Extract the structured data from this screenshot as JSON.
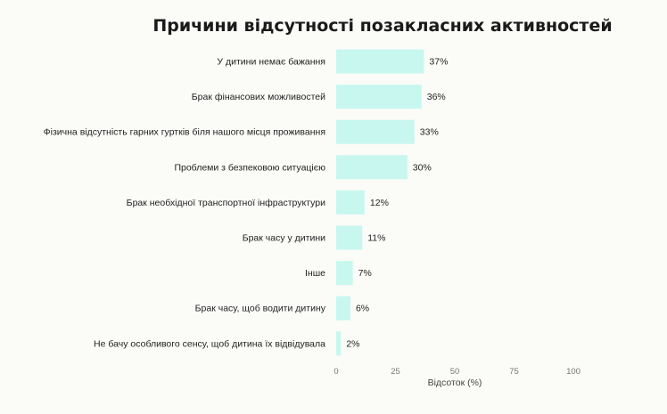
{
  "chart_data": {
    "type": "bar",
    "orientation": "horizontal",
    "title": "Причини відсутності позакласних активностей",
    "xlabel": "Відсоток (%)",
    "ylabel": "",
    "xlim": [
      0,
      100
    ],
    "x_ticks": [
      0,
      25,
      50,
      75,
      100
    ],
    "grid": false,
    "legend": "none",
    "bar_color": "#c8f7ef",
    "categories": [
      "У дитини немає бажання",
      "Брак фінансових можливостей",
      "Фізична відсутність гарних гуртків біля нашого місця проживання",
      "Проблеми з безпековою ситуацією",
      "Брак необхідної транспортної інфраструктури",
      "Брак часу у дитини",
      "Інше",
      "Брак часу, щоб водити дитину",
      "Не бачу особливого сенсу, щоб дитина їх відвідувала"
    ],
    "values": [
      37,
      36,
      33,
      30,
      12,
      11,
      7,
      6,
      2
    ],
    "value_labels": [
      "37%",
      "36%",
      "33%",
      "30%",
      "12%",
      "11%",
      "7%",
      "6%",
      "2%"
    ]
  }
}
